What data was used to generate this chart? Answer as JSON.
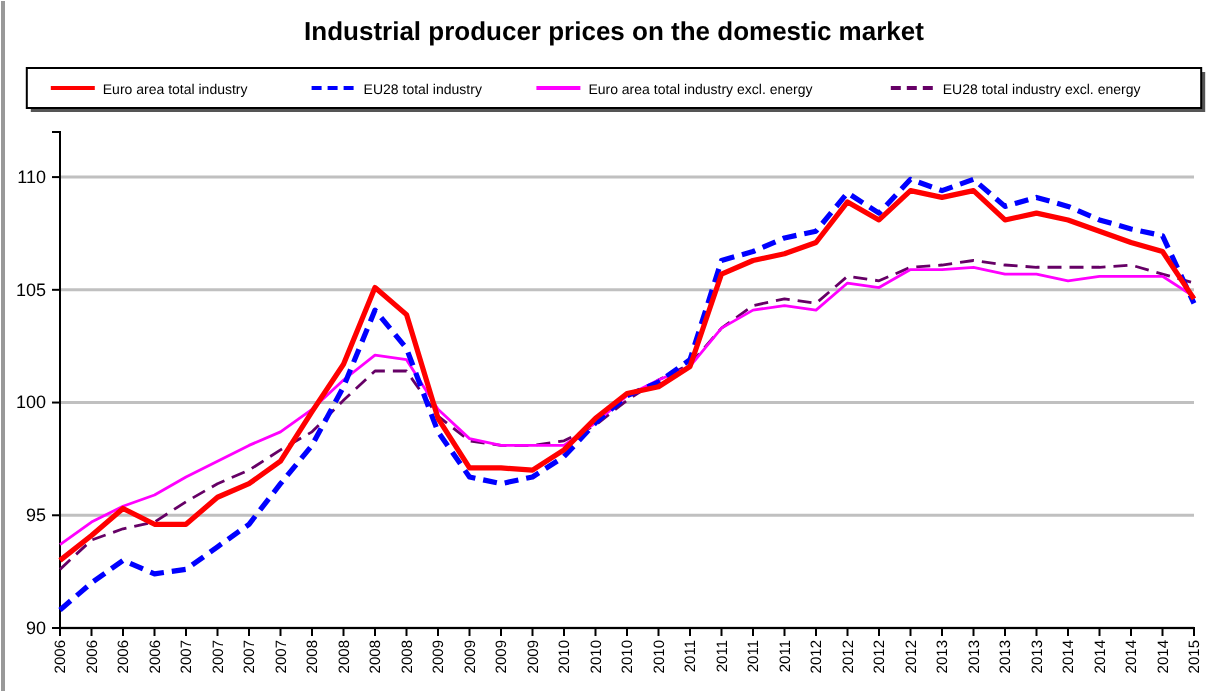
{
  "chart_data": {
    "type": "line",
    "title": "Industrial producer prices on the domestic market",
    "categories": [
      "2006",
      "2006",
      "2006",
      "2006",
      "2007",
      "2007",
      "2007",
      "2007",
      "2008",
      "2008",
      "2008",
      "2008",
      "2009",
      "2009",
      "2009",
      "2009",
      "2010",
      "2010",
      "2010",
      "2010",
      "2011",
      "2011",
      "2011",
      "2011",
      "2012",
      "2012",
      "2012",
      "2012",
      "2013",
      "2013",
      "2013",
      "2013",
      "2014",
      "2014",
      "2014",
      "2014",
      "2015"
    ],
    "series": [
      {
        "name": "Euro area total industry",
        "color": "#ff0000",
        "line_style": "solid",
        "values": [
          93.0,
          94.1,
          95.3,
          94.6,
          94.6,
          95.8,
          96.4,
          97.4,
          99.6,
          101.7,
          105.1,
          103.9,
          99.3,
          97.1,
          97.1,
          97.0,
          97.9,
          99.3,
          100.4,
          100.7,
          101.6,
          105.7,
          106.3,
          106.6,
          107.1,
          108.9,
          108.1,
          109.4,
          109.1,
          109.4,
          108.1,
          108.4,
          108.1,
          107.6,
          107.1,
          106.7,
          104.6
        ]
      },
      {
        "name": "EU28 total industry",
        "color": "#0000ff",
        "line_style": "dashed",
        "values": [
          90.8,
          92.0,
          93.0,
          92.4,
          92.6,
          93.6,
          94.6,
          96.4,
          98.1,
          100.7,
          104.1,
          102.4,
          98.7,
          96.7,
          96.4,
          96.7,
          97.6,
          99.1,
          100.3,
          100.9,
          101.9,
          106.3,
          106.7,
          107.3,
          107.6,
          109.3,
          108.4,
          109.9,
          109.4,
          109.9,
          108.7,
          109.1,
          108.7,
          108.1,
          107.7,
          107.4,
          104.4
        ]
      },
      {
        "name": "Euro area total industry excl. energy",
        "color": "#ff00ff",
        "line_style": "solid",
        "values": [
          93.7,
          94.7,
          95.4,
          95.9,
          96.7,
          97.4,
          98.1,
          98.7,
          99.7,
          101.0,
          102.1,
          101.9,
          99.7,
          98.4,
          98.1,
          98.1,
          98.1,
          99.1,
          100.3,
          101.0,
          101.6,
          103.3,
          104.1,
          104.3,
          104.1,
          105.3,
          105.1,
          105.9,
          105.9,
          106.0,
          105.7,
          105.7,
          105.4,
          105.6,
          105.6,
          105.6,
          104.7
        ]
      },
      {
        "name": "EU28 total industry excl. energy",
        "color": "#660066",
        "line_style": "dashed",
        "values": [
          92.6,
          93.9,
          94.4,
          94.7,
          95.6,
          96.4,
          97.0,
          97.9,
          98.7,
          100.1,
          101.4,
          101.4,
          99.4,
          98.3,
          98.1,
          98.1,
          98.3,
          99.0,
          100.1,
          101.0,
          101.7,
          103.3,
          104.3,
          104.6,
          104.4,
          105.6,
          105.4,
          106.0,
          106.1,
          106.3,
          106.1,
          106.0,
          106.0,
          106.0,
          106.1,
          105.7,
          105.3
        ]
      }
    ],
    "ylim": [
      90,
      112
    ],
    "yticks": [
      90,
      95,
      100,
      105,
      110
    ],
    "grid": "y",
    "legend": "top"
  }
}
